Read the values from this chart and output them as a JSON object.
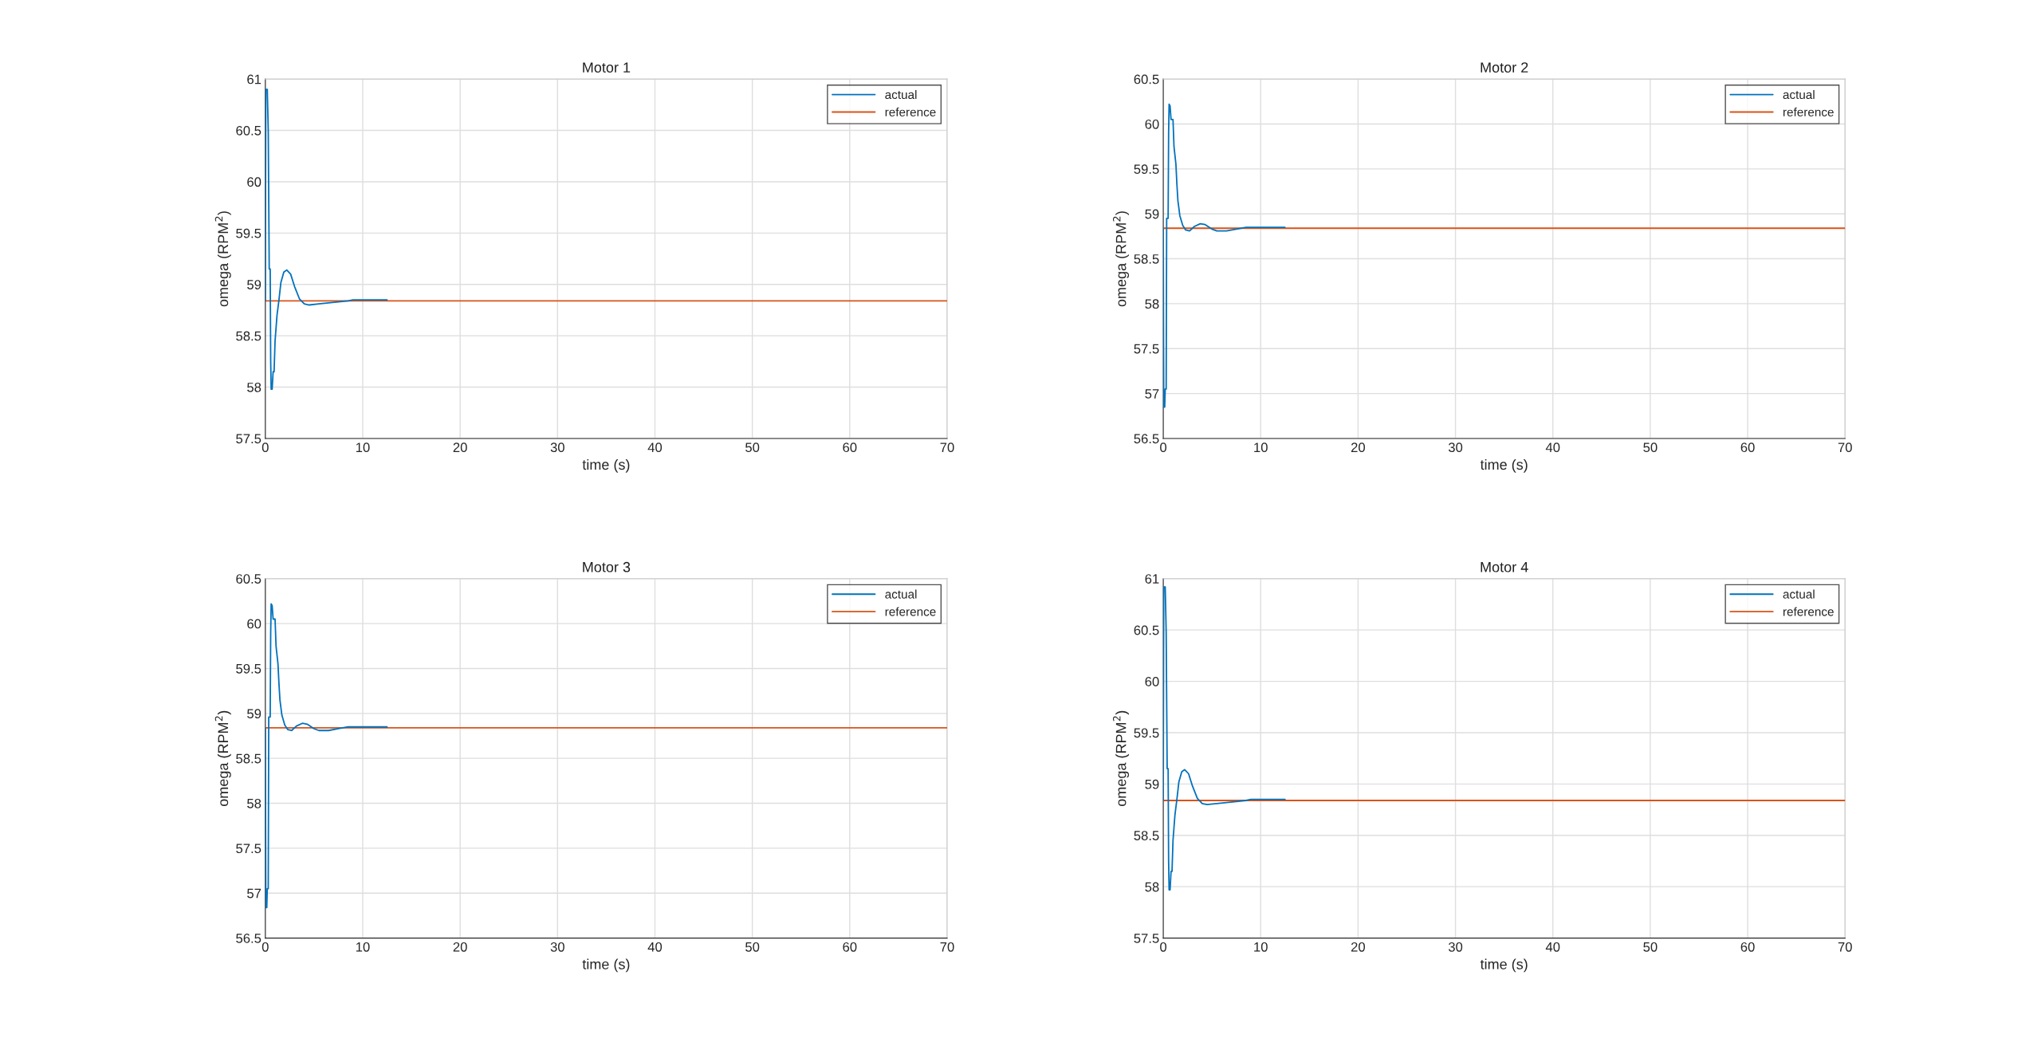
{
  "chart_data": [
    {
      "type": "line",
      "title": "Motor 1",
      "xlabel": "time (s)",
      "ylabel": "omega (RPM$^{2}$)",
      "xlim": [
        0,
        70
      ],
      "xticks": [
        0,
        10,
        20,
        30,
        40,
        50,
        60,
        70
      ],
      "ylim": [
        57.5,
        61
      ],
      "yticks": [
        57.5,
        58,
        58.5,
        59,
        59.5,
        60,
        60.5,
        61
      ],
      "grid": true,
      "legend": "top right",
      "line_style": "solid",
      "marker": "none",
      "series": [
        {
          "name": "actual",
          "color": "#0072bd",
          "x": [
            0,
            0.05,
            0.2,
            0.3,
            0.4,
            0.5,
            0.55,
            0.6,
            0.7,
            0.8,
            0.9,
            1.0,
            1.2,
            1.4,
            1.6,
            1.9,
            2.2,
            2.6,
            3.0,
            3.5,
            4.0,
            4.5,
            5.5,
            6.5,
            7.5,
            8.5,
            9,
            12.5
          ],
          "values": [
            58.84,
            60.9,
            60.9,
            60.5,
            59.15,
            59.15,
            58.25,
            57.98,
            57.98,
            58.15,
            58.15,
            58.45,
            58.7,
            58.85,
            59.02,
            59.12,
            59.14,
            59.1,
            58.98,
            58.86,
            58.81,
            58.8,
            58.81,
            58.82,
            58.83,
            58.84,
            58.85,
            58.85
          ]
        },
        {
          "name": "reference",
          "color": "#d95319",
          "x": [
            0,
            70
          ],
          "values": [
            58.84,
            58.84
          ]
        }
      ]
    },
    {
      "type": "line",
      "title": "Motor 2",
      "xlabel": "time (s)",
      "ylabel": "omega (RPM$^{2}$)",
      "xlim": [
        0,
        70
      ],
      "xticks": [
        0,
        10,
        20,
        30,
        40,
        50,
        60,
        70
      ],
      "ylim": [
        56.5,
        60.5
      ],
      "yticks": [
        56.5,
        57,
        57.5,
        58,
        58.5,
        59,
        59.5,
        60,
        60.5
      ],
      "grid": true,
      "legend": "top right",
      "line_style": "solid",
      "marker": "none",
      "series": [
        {
          "name": "actual",
          "color": "#0072bd",
          "x": [
            0,
            0.05,
            0.15,
            0.2,
            0.3,
            0.35,
            0.5,
            0.55,
            0.6,
            0.7,
            0.8,
            1.0,
            1.1,
            1.3,
            1.4,
            1.5,
            1.7,
            2.0,
            2.3,
            2.7,
            3.2,
            3.8,
            4.3,
            5.0,
            5.5,
            6.5,
            7.5,
            8.5,
            12.5
          ],
          "values": [
            58.84,
            56.85,
            56.85,
            57.05,
            57.05,
            58.95,
            58.95,
            59.9,
            60.22,
            60.2,
            60.05,
            60.05,
            59.75,
            59.55,
            59.33,
            59.15,
            58.98,
            58.87,
            58.82,
            58.81,
            58.86,
            58.89,
            58.88,
            58.83,
            58.81,
            58.81,
            58.83,
            58.85,
            58.85
          ]
        },
        {
          "name": "reference",
          "color": "#d95319",
          "x": [
            0,
            70
          ],
          "values": [
            58.84,
            58.84
          ]
        }
      ]
    },
    {
      "type": "line",
      "title": "Motor 3",
      "xlabel": "time (s)",
      "ylabel": "omega (RPM$^{2}$)",
      "xlim": [
        0,
        70
      ],
      "xticks": [
        0,
        10,
        20,
        30,
        40,
        50,
        60,
        70
      ],
      "ylim": [
        56.5,
        60.5
      ],
      "yticks": [
        56.5,
        57,
        57.5,
        58,
        58.5,
        59,
        59.5,
        60,
        60.5
      ],
      "grid": true,
      "legend": "top right",
      "line_style": "solid",
      "marker": "none",
      "series": [
        {
          "name": "actual",
          "color": "#0072bd",
          "x": [
            0,
            0.05,
            0.15,
            0.2,
            0.3,
            0.35,
            0.5,
            0.55,
            0.6,
            0.7,
            0.8,
            1.0,
            1.1,
            1.3,
            1.4,
            1.5,
            1.7,
            2.0,
            2.3,
            2.7,
            3.2,
            3.8,
            4.3,
            5.0,
            5.5,
            6.5,
            7.5,
            8.5,
            12.5
          ],
          "values": [
            58.84,
            56.84,
            56.84,
            57.05,
            57.05,
            58.96,
            58.96,
            59.9,
            60.22,
            60.2,
            60.05,
            60.05,
            59.75,
            59.55,
            59.33,
            59.15,
            58.98,
            58.87,
            58.82,
            58.81,
            58.86,
            58.89,
            58.88,
            58.83,
            58.81,
            58.81,
            58.83,
            58.85,
            58.85
          ]
        },
        {
          "name": "reference",
          "color": "#d95319",
          "x": [
            0,
            70
          ],
          "values": [
            58.84,
            58.84
          ]
        }
      ]
    },
    {
      "type": "line",
      "title": "Motor 4",
      "xlabel": "time (s)",
      "ylabel": "omega (RPM$^{2}$)",
      "xlim": [
        0,
        70
      ],
      "xticks": [
        0,
        10,
        20,
        30,
        40,
        50,
        60,
        70
      ],
      "ylim": [
        57.5,
        61
      ],
      "yticks": [
        57.5,
        58,
        58.5,
        59,
        59.5,
        60,
        60.5,
        61
      ],
      "grid": true,
      "legend": "top right",
      "line_style": "solid",
      "marker": "none",
      "series": [
        {
          "name": "actual",
          "color": "#0072bd",
          "x": [
            0,
            0.05,
            0.2,
            0.3,
            0.4,
            0.5,
            0.55,
            0.6,
            0.7,
            0.8,
            0.9,
            1.0,
            1.2,
            1.4,
            1.6,
            1.9,
            2.2,
            2.6,
            3.0,
            3.5,
            4.0,
            4.5,
            5.5,
            6.5,
            7.5,
            8.5,
            9,
            12.5
          ],
          "values": [
            58.84,
            60.92,
            60.92,
            60.48,
            59.15,
            59.15,
            58.25,
            57.97,
            57.97,
            58.15,
            58.15,
            58.45,
            58.7,
            58.85,
            59.02,
            59.12,
            59.14,
            59.1,
            58.98,
            58.86,
            58.81,
            58.8,
            58.81,
            58.82,
            58.83,
            58.84,
            58.85,
            58.85
          ]
        },
        {
          "name": "reference",
          "color": "#d95319",
          "x": [
            0,
            70
          ],
          "values": [
            58.84,
            58.84
          ]
        }
      ]
    }
  ]
}
